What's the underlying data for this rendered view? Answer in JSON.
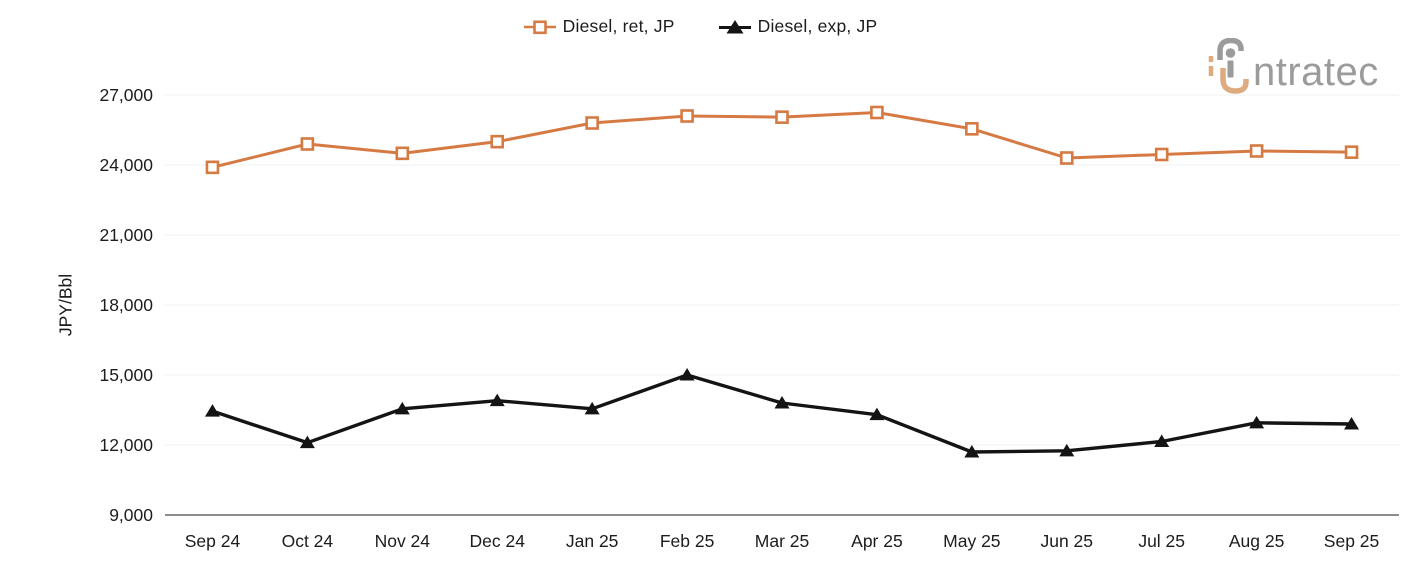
{
  "page": {
    "background": "#ffffff"
  },
  "logo": {
    "brand_text": "ntratec",
    "full_name": "intratec",
    "gray": "#9b9b9b",
    "orange": "#dcab80"
  },
  "chart_data": {
    "type": "line",
    "title": "",
    "xlabel": "",
    "ylabel": "JPY/Bbl",
    "x": [
      "Sep 24",
      "Oct 24",
      "Nov 24",
      "Dec 24",
      "Jan 25",
      "Feb 25",
      "Mar 25",
      "Apr 25",
      "May 25",
      "Jun 25",
      "Jul 25",
      "Aug 25",
      "Sep 25"
    ],
    "series": [
      {
        "name": "Diesel, ret, JP",
        "color": "#d67a44",
        "marker": "square-open",
        "values": [
          23900,
          24900,
          24500,
          25000,
          25800,
          26100,
          26050,
          26250,
          25550,
          24300,
          24450,
          24600,
          24550
        ]
      },
      {
        "name": "Diesel, exp, JP",
        "color": "#141414",
        "marker": "triangle-up",
        "values": [
          13450,
          12100,
          13550,
          13900,
          13550,
          15000,
          13800,
          13300,
          11700,
          11750,
          12150,
          12950,
          12900
        ]
      }
    ],
    "ylim": [
      9000,
      27000
    ],
    "yticks": [
      9000,
      12000,
      15000,
      18000,
      21000,
      24000,
      27000
    ],
    "grid": true,
    "gridline_color": "#f1f1f1",
    "axis_line_color": "#8c8c8c",
    "tick_label_color": "#1c1c1c",
    "legend_position": "top-center"
  }
}
